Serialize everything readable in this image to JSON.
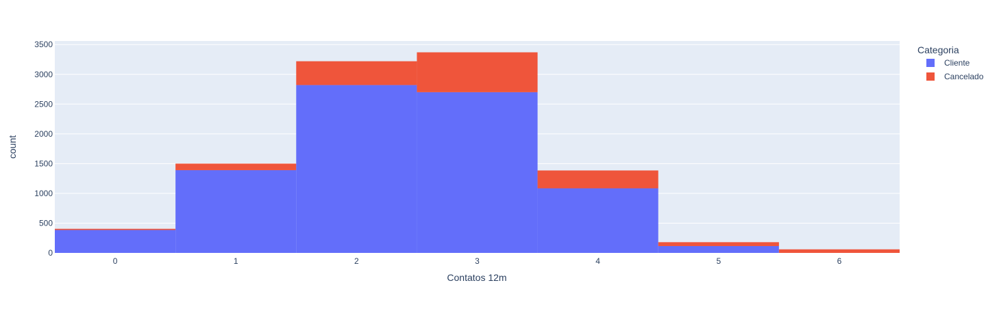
{
  "chart_data": {
    "type": "bar",
    "barmode": "stack",
    "categories": [
      "0",
      "1",
      "2",
      "3",
      "4",
      "5",
      "6"
    ],
    "series": [
      {
        "name": "Cliente",
        "color": "#636efa",
        "values": [
          385,
          1390,
          2820,
          2700,
          1085,
          115,
          0
        ]
      },
      {
        "name": "Cancelado",
        "color": "#ef553b",
        "values": [
          20,
          110,
          400,
          670,
          300,
          65,
          60
        ]
      }
    ],
    "xlabel": "Contatos 12m",
    "ylabel": "count",
    "ylim": [
      0,
      3560
    ],
    "yticks": [
      0,
      500,
      1000,
      1500,
      2000,
      2500,
      3000,
      3500
    ],
    "ytick_labels": [
      "0",
      "500",
      "1000",
      "1500",
      "2000",
      "2500",
      "3000",
      "3500"
    ],
    "grid": true,
    "legend": {
      "title": "Categoria",
      "placement": "top-right"
    },
    "plot_background": "#e5ecf6"
  }
}
